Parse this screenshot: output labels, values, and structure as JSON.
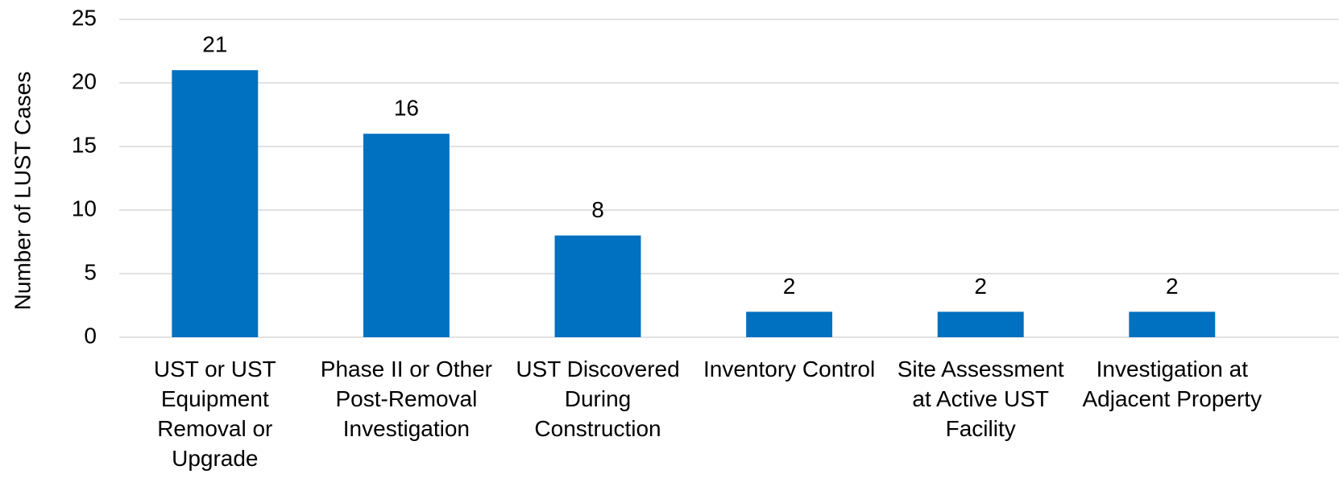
{
  "chart_data": {
    "type": "bar",
    "y_label": "Number of LUST Cases",
    "categories": [
      "UST or UST Equipment Removal or Upgrade",
      "Phase II or Other Post-Removal Investigation",
      "UST Discovered During Construction",
      "Inventory Control",
      "Site Assessment at Active UST Facility",
      "Investigation at Adjacent Property"
    ],
    "values": [
      21,
      16,
      8,
      2,
      2,
      2
    ],
    "color": "#0070c0",
    "ylim": [
      0,
      25
    ],
    "yticks": [
      0,
      5,
      10,
      15,
      20,
      25
    ],
    "grid": true
  }
}
